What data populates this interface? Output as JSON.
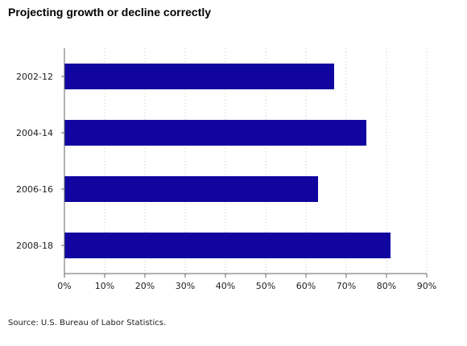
{
  "title": "Projecting growth or decline correctly",
  "source": "Source: U.S. Bureau of Labor Statistics.",
  "chart_data": {
    "type": "bar",
    "orientation": "horizontal",
    "categories": [
      "2002-12",
      "2004-14",
      "2006-16",
      "2008-18"
    ],
    "values": [
      67,
      75,
      63,
      81
    ],
    "xlim": [
      0,
      90
    ],
    "x_ticks": [
      0,
      10,
      20,
      30,
      40,
      50,
      60,
      70,
      80,
      90
    ],
    "x_tick_labels": [
      "0%",
      "10%",
      "20%",
      "30%",
      "40%",
      "50%",
      "60%",
      "70%",
      "80%",
      "90%"
    ],
    "grid": true,
    "bar_color": "#10069f"
  }
}
